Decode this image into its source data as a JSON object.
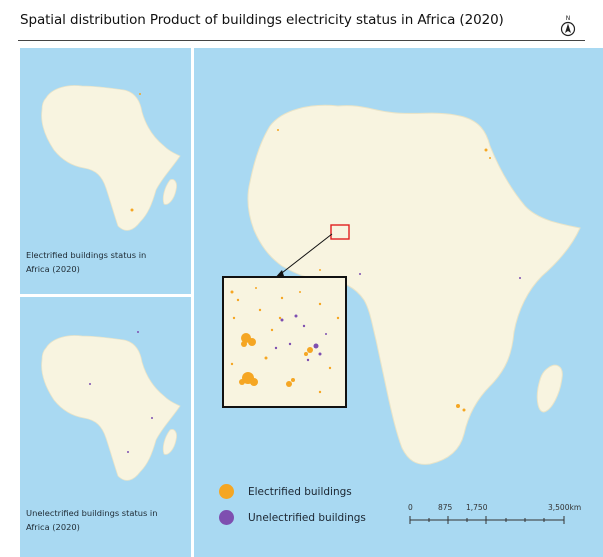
{
  "title": "Spatial distribution Product of buildings electricity status in Africa (2020)",
  "north_label": "N",
  "panels": {
    "top_left_label_line1": "Electrified buildings status in",
    "top_left_label_line2": "Africa (2020)",
    "bottom_left_label_line1": "Unelectrified buildings  status in",
    "bottom_left_label_line2": "Africa (2020)"
  },
  "legend": {
    "items": [
      {
        "label": "Electrified buildings",
        "color": "#f5a623"
      },
      {
        "label": "Unelectrified buildings",
        "color": "#7e4fb0"
      }
    ]
  },
  "scale_bar": {
    "labels": [
      "0",
      "875",
      "1,750",
      "3,500km"
    ]
  },
  "colors": {
    "ocean": "#a9d9f2",
    "land": "#f8f4e0",
    "frame_border": "#ffffff",
    "inset_border": "#111111",
    "highlight_box": "#e02020"
  }
}
